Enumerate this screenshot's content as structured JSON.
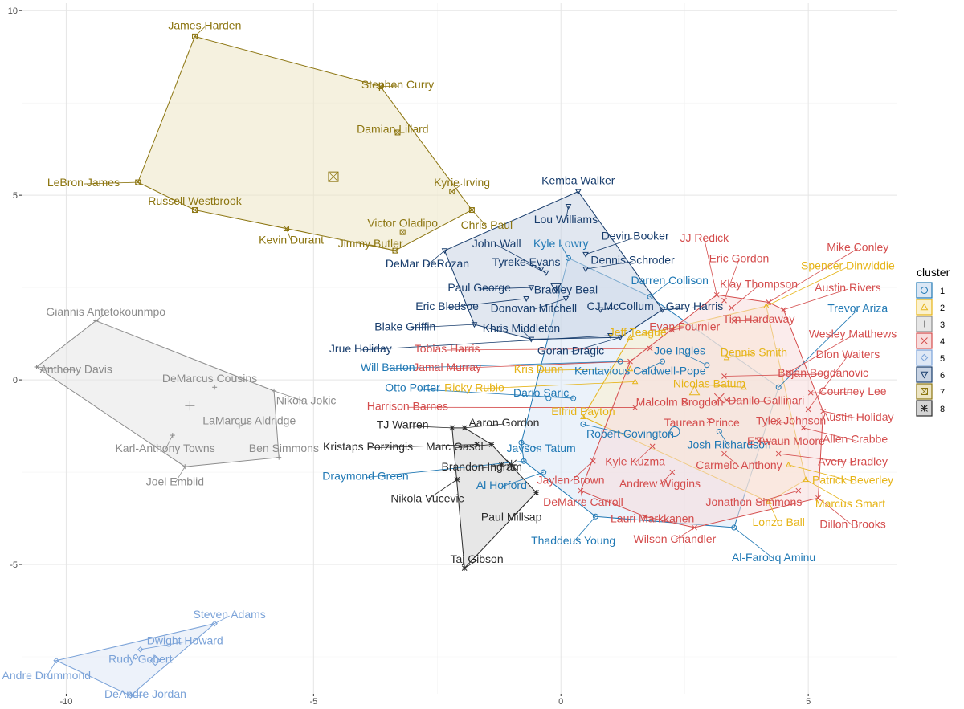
{
  "chart_data": {
    "type": "scatter",
    "xlim": [
      -10.9,
      6.8
    ],
    "ylim": [
      -8.5,
      10.2
    ],
    "x_ticks": [
      -10,
      -5,
      0,
      5
    ],
    "y_ticks": [
      -5,
      0,
      5,
      10
    ],
    "x_tick_labels": [
      "-10",
      "-5",
      "0",
      "5"
    ],
    "y_tick_labels": [
      "-5",
      "0",
      "5",
      "10"
    ],
    "grid": true,
    "legend": {
      "title": "cluster",
      "position": "right",
      "labels": [
        "1",
        "2",
        "3",
        "4",
        "5",
        "6",
        "7",
        "8"
      ]
    },
    "colors": {
      "1": "#1f78b4",
      "2": "#e6b418",
      "3": "#8c8c8c",
      "4": "#d44c4c",
      "5": "#7aa2d8",
      "6": "#173c6c",
      "7": "#8c7510",
      "8": "#2b2b2b"
    },
    "hull_fills": {
      "1": "#dbe7f5",
      "2": "#fbf1cd",
      "3": "#e6e6e6",
      "4": "#f8dcdc",
      "5": "#dfe8f5",
      "6": "#c8d3e3",
      "7": "#ede5c4",
      "8": "#d3d3d3"
    },
    "hull_fill_opacity": 0.55,
    "centroids": [
      {
        "cluster": "1",
        "x": 2.3,
        "y": -1.4
      },
      {
        "cluster": "2",
        "x": 2.7,
        "y": -0.3
      },
      {
        "cluster": "3",
        "x": -7.5,
        "y": -0.7
      },
      {
        "cluster": "4",
        "x": 3.2,
        "y": -0.5
      },
      {
        "cluster": "5",
        "x": -8.2,
        "y": -7.6
      },
      {
        "cluster": "6",
        "x": -0.1,
        "y": 2.5
      },
      {
        "cluster": "7",
        "x": -4.6,
        "y": 5.5
      },
      {
        "cluster": "8",
        "x": -1.0,
        "y": -2.3
      }
    ],
    "points": [
      {
        "name": "James Harden",
        "cluster": "7",
        "x": -7.4,
        "y": 9.3,
        "lx": -7.2,
        "ly": 9.6
      },
      {
        "name": "Stephen Curry",
        "cluster": "7",
        "x": -3.65,
        "y": 7.95,
        "lx": -3.3,
        "ly": 8.0
      },
      {
        "name": "Damian Lillard",
        "cluster": "7",
        "x": -3.3,
        "y": 6.7,
        "lx": -3.4,
        "ly": 6.8
      },
      {
        "name": "LeBron James",
        "cluster": "7",
        "x": -8.55,
        "y": 5.35,
        "lx": -9.65,
        "ly": 5.35
      },
      {
        "name": "Russell Westbrook",
        "cluster": "7",
        "x": -7.4,
        "y": 4.6,
        "lx": -7.4,
        "ly": 4.85
      },
      {
        "name": "Kyrie Irving",
        "cluster": "7",
        "x": -2.2,
        "y": 5.1,
        "lx": -2.0,
        "ly": 5.35
      },
      {
        "name": "Victor Oladipo",
        "cluster": "7",
        "x": -3.2,
        "y": 4.0,
        "lx": -3.2,
        "ly": 4.25
      },
      {
        "name": "Kevin Durant",
        "cluster": "7",
        "x": -5.55,
        "y": 4.1,
        "lx": -5.45,
        "ly": 3.8
      },
      {
        "name": "Jimmy Butler",
        "cluster": "7",
        "x": -3.35,
        "y": 3.5,
        "lx": -3.85,
        "ly": 3.7
      },
      {
        "name": "Chris Paul",
        "cluster": "7",
        "x": -1.8,
        "y": 4.6,
        "lx": -1.5,
        "ly": 4.2
      },
      {
        "name": "Kemba Walker",
        "cluster": "6",
        "x": 0.35,
        "y": 5.1,
        "lx": 0.35,
        "ly": 5.4
      },
      {
        "name": "Lou Williams",
        "cluster": "6",
        "x": 0.15,
        "y": 4.7,
        "lx": 0.1,
        "ly": 4.35
      },
      {
        "name": "John Wall",
        "cluster": "6",
        "x": -0.4,
        "y": 3.0,
        "lx": -1.3,
        "ly": 3.7
      },
      {
        "name": "Kyle Lowry",
        "cluster": "1",
        "x": 0.15,
        "y": 3.3,
        "lx": 0.0,
        "ly": 3.7
      },
      {
        "name": "Devin Booker",
        "cluster": "6",
        "x": 0.5,
        "y": 3.4,
        "lx": 1.5,
        "ly": 3.9
      },
      {
        "name": "DeMar DeRozan",
        "cluster": "6",
        "x": -2.35,
        "y": 3.5,
        "lx": -2.7,
        "ly": 3.15
      },
      {
        "name": "Tyreke Evans",
        "cluster": "6",
        "x": -0.3,
        "y": 2.9,
        "lx": -0.7,
        "ly": 3.2
      },
      {
        "name": "Dennis Schroder",
        "cluster": "6",
        "x": 0.5,
        "y": 3.0,
        "lx": 1.45,
        "ly": 3.25
      },
      {
        "name": "Darren Collison",
        "cluster": "1",
        "x": 1.8,
        "y": 2.25,
        "lx": 2.2,
        "ly": 2.7
      },
      {
        "name": "Paul George",
        "cluster": "6",
        "x": -0.6,
        "y": 2.5,
        "lx": -1.65,
        "ly": 2.5
      },
      {
        "name": "Bradley Beal",
        "cluster": "6",
        "x": -0.1,
        "y": 2.45,
        "lx": 0.1,
        "ly": 2.45
      },
      {
        "name": "Eric Bledsoe",
        "cluster": "6",
        "x": -0.7,
        "y": 2.2,
        "lx": -2.3,
        "ly": 2.0
      },
      {
        "name": "Donovan Mitchell",
        "cluster": "6",
        "x": 0.1,
        "y": 2.2,
        "lx": -0.55,
        "ly": 1.95
      },
      {
        "name": "CJ McCollum",
        "cluster": "6",
        "x": 0.8,
        "y": 1.9,
        "lx": 1.2,
        "ly": 2.0
      },
      {
        "name": "Gary Harris",
        "cluster": "6",
        "x": 2.05,
        "y": 1.9,
        "lx": 2.7,
        "ly": 2.0
      },
      {
        "name": "Blake Griffin",
        "cluster": "6",
        "x": -1.75,
        "y": 1.5,
        "lx": -3.15,
        "ly": 1.45
      },
      {
        "name": "Khris Middleton",
        "cluster": "6",
        "x": -0.6,
        "y": 1.1,
        "lx": -0.8,
        "ly": 1.4
      },
      {
        "name": "Jrue Holiday",
        "cluster": "6",
        "x": 1.0,
        "y": 1.2,
        "lx": -4.05,
        "ly": 0.85
      },
      {
        "name": "Goran Dragic",
        "cluster": "6",
        "x": 1.2,
        "y": 1.15,
        "lx": 0.2,
        "ly": 0.8
      },
      {
        "name": "JJ Redick",
        "cluster": "4",
        "x": 3.15,
        "y": 2.3,
        "lx": 2.9,
        "ly": 3.85
      },
      {
        "name": "Eric Gordon",
        "cluster": "4",
        "x": 3.3,
        "y": 2.15,
        "lx": 3.6,
        "ly": 3.3
      },
      {
        "name": "Mike Conley",
        "cluster": "4",
        "x": 4.2,
        "y": 2.1,
        "lx": 6.0,
        "ly": 3.6
      },
      {
        "name": "Spencer Dinwiddie",
        "cluster": "2",
        "x": 4.15,
        "y": 2.0,
        "lx": 5.8,
        "ly": 3.1
      },
      {
        "name": "Klay Thompson",
        "cluster": "4",
        "x": 3.45,
        "y": 1.95,
        "lx": 4.0,
        "ly": 2.6
      },
      {
        "name": "Austin Rivers",
        "cluster": "4",
        "x": 4.5,
        "y": 1.9,
        "lx": 5.8,
        "ly": 2.5
      },
      {
        "name": "Trevor Ariza",
        "cluster": "1",
        "x": 4.4,
        "y": -0.2,
        "lx": 6.0,
        "ly": 1.95
      },
      {
        "name": "Tim Hardaway",
        "cluster": "4",
        "x": 3.5,
        "y": 1.6,
        "lx": 4.0,
        "ly": 1.65
      },
      {
        "name": "Evan Fournier",
        "cluster": "4",
        "x": 2.25,
        "y": 1.35,
        "lx": 2.5,
        "ly": 1.45
      },
      {
        "name": "Jeff Teague",
        "cluster": "2",
        "x": 1.4,
        "y": 1.15,
        "lx": 1.55,
        "ly": 1.3
      },
      {
        "name": "Wesley Matthews",
        "cluster": "4",
        "x": 4.6,
        "y": 0.2,
        "lx": 5.9,
        "ly": 1.25
      },
      {
        "name": "Tobias Harris",
        "cluster": "4",
        "x": 1.8,
        "y": 0.85,
        "lx": -2.3,
        "ly": 0.85
      },
      {
        "name": "Joe Ingles",
        "cluster": "1",
        "x": 2.95,
        "y": 0.4,
        "lx": 2.4,
        "ly": 0.8
      },
      {
        "name": "Dennis Smith",
        "cluster": "2",
        "x": 3.35,
        "y": 0.6,
        "lx": 3.9,
        "ly": 0.75
      },
      {
        "name": "Dion Waiters",
        "cluster": "4",
        "x": 5.0,
        "y": -0.8,
        "lx": 5.8,
        "ly": 0.7
      },
      {
        "name": "Jamal Murray",
        "cluster": "4",
        "x": 1.4,
        "y": 0.5,
        "lx": -2.3,
        "ly": 0.35
      },
      {
        "name": "Will Barton",
        "cluster": "1",
        "x": 1.2,
        "y": 0.5,
        "lx": -3.5,
        "ly": 0.35
      },
      {
        "name": "Kris Dunn",
        "cluster": "2",
        "x": 1.4,
        "y": 0.3,
        "lx": -0.45,
        "ly": 0.3
      },
      {
        "name": "Kentavious Caldwell-Pope",
        "cluster": "1",
        "x": 2.05,
        "y": 0.5,
        "lx": 1.6,
        "ly": 0.25
      },
      {
        "name": "Bojan Bogdanovic",
        "cluster": "4",
        "x": 3.3,
        "y": 0.1,
        "lx": 5.3,
        "ly": 0.2
      },
      {
        "name": "Nicolas Batum",
        "cluster": "2",
        "x": 3.7,
        "y": -0.2,
        "lx": 3.0,
        "ly": -0.1
      },
      {
        "name": "Otto Porter",
        "cluster": "1",
        "x": 0.25,
        "y": -0.5,
        "lx": -3.0,
        "ly": -0.2
      },
      {
        "name": "Ricky Rubio",
        "cluster": "2",
        "x": 1.5,
        "y": -0.05,
        "lx": -1.75,
        "ly": -0.2
      },
      {
        "name": "Courtney Lee",
        "cluster": "4",
        "x": 5.05,
        "y": -0.35,
        "lx": 5.9,
        "ly": -0.3
      },
      {
        "name": "Dario Saric",
        "cluster": "1",
        "x": -0.25,
        "y": -0.5,
        "lx": -0.4,
        "ly": -0.35
      },
      {
        "name": "Danilo Gallinari",
        "cluster": "4",
        "x": 3.35,
        "y": -0.55,
        "lx": 4.15,
        "ly": -0.55
      },
      {
        "name": "Malcolm Brogdon",
        "cluster": "4",
        "x": 2.5,
        "y": -0.6,
        "lx": 2.4,
        "ly": -0.6
      },
      {
        "name": "Harrison Barnes",
        "cluster": "4",
        "x": 1.5,
        "y": -0.75,
        "lx": -3.1,
        "ly": -0.7
      },
      {
        "name": "Austin Holiday",
        "cluster": "4",
        "x": 5.3,
        "y": -0.85,
        "lx": 6.0,
        "ly": -1.0
      },
      {
        "name": "Tyler Johnson",
        "cluster": "4",
        "x": 4.4,
        "y": -1.15,
        "lx": 4.65,
        "ly": -1.1
      },
      {
        "name": "Elfrid Payton",
        "cluster": "2",
        "x": 0.45,
        "y": -1.0,
        "lx": 0.45,
        "ly": -0.85
      },
      {
        "name": "Taurean Prince",
        "cluster": "4",
        "x": 3.0,
        "y": -1.1,
        "lx": 2.85,
        "ly": -1.15
      },
      {
        "name": "TJ Warren",
        "cluster": "8",
        "x": -2.2,
        "y": -1.3,
        "lx": -3.2,
        "ly": -1.2
      },
      {
        "name": "Aaron Gordon",
        "cluster": "8",
        "x": -1.95,
        "y": -1.3,
        "lx": -1.15,
        "ly": -1.15
      },
      {
        "name": "Robert Covington",
        "cluster": "1",
        "x": 0.45,
        "y": -1.2,
        "lx": 1.4,
        "ly": -1.45
      },
      {
        "name": "Allen Crabbe",
        "cluster": "4",
        "x": 4.9,
        "y": -1.3,
        "lx": 5.95,
        "ly": -1.6
      },
      {
        "name": "Josh Richardson",
        "cluster": "1",
        "x": 3.2,
        "y": -1.4,
        "lx": 3.4,
        "ly": -1.75
      },
      {
        "name": "Kristaps Porzingis",
        "cluster": "8",
        "x": -1.7,
        "y": -1.75,
        "lx": -3.9,
        "ly": -1.8
      },
      {
        "name": "Marc Gasol",
        "cluster": "8",
        "x": -1.4,
        "y": -1.75,
        "lx": -2.15,
        "ly": -1.8
      },
      {
        "name": "Jayson Tatum",
        "cluster": "1",
        "x": -0.8,
        "y": -1.7,
        "lx": -0.4,
        "ly": -1.85
      },
      {
        "name": "E'Twaun Moore",
        "cluster": "4",
        "x": 4.0,
        "y": -1.65,
        "lx": 4.55,
        "ly": -1.65
      },
      {
        "name": "Kyle Kuzma",
        "cluster": "4",
        "x": 1.85,
        "y": -1.8,
        "lx": 1.5,
        "ly": -2.2
      },
      {
        "name": "Avery Bradley",
        "cluster": "4",
        "x": 4.4,
        "y": -2.0,
        "lx": 5.9,
        "ly": -2.2
      },
      {
        "name": "Carmelo Anthony",
        "cluster": "4",
        "x": 3.3,
        "y": -2.0,
        "lx": 3.6,
        "ly": -2.3
      },
      {
        "name": "Brandon Ingram",
        "cluster": "8",
        "x": -1.2,
        "y": -2.3,
        "lx": -1.6,
        "ly": -2.35
      },
      {
        "name": "Draymond Green",
        "cluster": "1",
        "x": -0.75,
        "y": -2.2,
        "lx": -3.95,
        "ly": -2.6
      },
      {
        "name": "Jaylen Brown",
        "cluster": "4",
        "x": 0.65,
        "y": -2.2,
        "lx": 0.2,
        "ly": -2.7
      },
      {
        "name": "Andrew Wiggins",
        "cluster": "4",
        "x": 2.25,
        "y": -2.5,
        "lx": 2.0,
        "ly": -2.8
      },
      {
        "name": "Patrick Beverley",
        "cluster": "2",
        "x": 4.6,
        "y": -2.3,
        "lx": 5.9,
        "ly": -2.7
      },
      {
        "name": "Al Horford",
        "cluster": "1",
        "x": -0.35,
        "y": -2.5,
        "lx": -1.2,
        "ly": -2.85
      },
      {
        "name": "Nikola Vucevic",
        "cluster": "8",
        "x": -2.1,
        "y": -2.7,
        "lx": -2.7,
        "ly": -3.2
      },
      {
        "name": "Paul Millsap",
        "cluster": "8",
        "x": -0.5,
        "y": -3.05,
        "lx": -1.0,
        "ly": -3.7
      },
      {
        "name": "DeMarre Carroll",
        "cluster": "4",
        "x": 0.4,
        "y": -3.0,
        "lx": 0.45,
        "ly": -3.3
      },
      {
        "name": "Jonathon Simmons",
        "cluster": "4",
        "x": 4.8,
        "y": -3.0,
        "lx": 3.9,
        "ly": -3.3
      },
      {
        "name": "Marcus Smart",
        "cluster": "2",
        "x": 4.95,
        "y": -2.7,
        "lx": 5.85,
        "ly": -3.35
      },
      {
        "name": "Lauri Markkanen",
        "cluster": "4",
        "x": 1.7,
        "y": -3.7,
        "lx": 1.85,
        "ly": -3.75
      },
      {
        "name": "Lonzo Ball",
        "cluster": "2",
        "x": 4.2,
        "y": -3.3,
        "lx": 4.4,
        "ly": -3.85
      },
      {
        "name": "Dillon Brooks",
        "cluster": "4",
        "x": 5.2,
        "y": -3.2,
        "lx": 5.9,
        "ly": -3.9
      },
      {
        "name": "Thaddeus Young",
        "cluster": "1",
        "x": 0.7,
        "y": -3.7,
        "lx": 0.25,
        "ly": -4.35
      },
      {
        "name": "Wilson Chandler",
        "cluster": "4",
        "x": 2.7,
        "y": -4.0,
        "lx": 2.3,
        "ly": -4.3
      },
      {
        "name": "Taj Gibson",
        "cluster": "8",
        "x": -1.95,
        "y": -5.1,
        "lx": -1.7,
        "ly": -4.85
      },
      {
        "name": "Al-Farouq Aminu",
        "cluster": "1",
        "x": 3.5,
        "y": -4.0,
        "lx": 4.3,
        "ly": -4.8
      },
      {
        "name": "Giannis Antetokounmpo",
        "cluster": "3",
        "x": -9.4,
        "y": 1.6,
        "lx": -9.2,
        "ly": 1.85
      },
      {
        "name": "Anthony Davis",
        "cluster": "3",
        "x": -10.6,
        "y": 0.35,
        "lx": -9.8,
        "ly": 0.3
      },
      {
        "name": "DeMarcus Cousins",
        "cluster": "3",
        "x": -7.0,
        "y": -0.2,
        "lx": -7.1,
        "ly": 0.05
      },
      {
        "name": "Nikola Jokic",
        "cluster": "3",
        "x": -5.8,
        "y": -0.3,
        "lx": -5.15,
        "ly": -0.55
      },
      {
        "name": "LaMarcus Aldridge",
        "cluster": "3",
        "x": -6.5,
        "y": -1.25,
        "lx": -6.3,
        "ly": -1.1
      },
      {
        "name": "Karl-Anthony Towns",
        "cluster": "3",
        "x": -7.85,
        "y": -1.5,
        "lx": -8.0,
        "ly": -1.85
      },
      {
        "name": "Ben Simmons",
        "cluster": "3",
        "x": -5.7,
        "y": -2.1,
        "lx": -5.6,
        "ly": -1.85
      },
      {
        "name": "Joel Embiid",
        "cluster": "3",
        "x": -7.6,
        "y": -2.35,
        "lx": -7.8,
        "ly": -2.75
      },
      {
        "name": "Steven Adams",
        "cluster": "5",
        "x": -7.0,
        "y": -6.6,
        "lx": -6.7,
        "ly": -6.35
      },
      {
        "name": "Dwight Howard",
        "cluster": "5",
        "x": -8.5,
        "y": -7.3,
        "lx": -7.6,
        "ly": -7.05
      },
      {
        "name": "Rudy Gobert",
        "cluster": "5",
        "x": -8.6,
        "y": -7.5,
        "lx": -8.5,
        "ly": -7.55
      },
      {
        "name": "Andre Drummond",
        "cluster": "5",
        "x": -10.2,
        "y": -7.6,
        "lx": -10.4,
        "ly": -8.0
      },
      {
        "name": "DeAndre Jordan",
        "cluster": "5",
        "x": -8.7,
        "y": -8.55,
        "lx": -8.4,
        "ly": -8.5
      }
    ]
  }
}
